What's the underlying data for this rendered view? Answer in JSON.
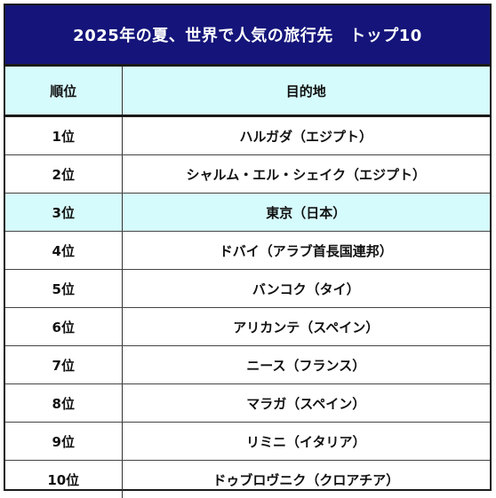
{
  "title": "2025年の夏、世界で人気の旅行先　トップ10",
  "headers": {
    "rank": "順位",
    "destination": "目的地"
  },
  "highlight_color": "#d6fbfd",
  "header_color": "#14147a",
  "rows": [
    {
      "rank": "1位",
      "destination": "ハルガダ（エジプト）",
      "highlight": false
    },
    {
      "rank": "2位",
      "destination": "シャルム・エル・シェイク（エジプト）",
      "highlight": false
    },
    {
      "rank": "3位",
      "destination": "東京（日本）",
      "highlight": true
    },
    {
      "rank": "4位",
      "destination": "ドバイ（アラブ首長国連邦）",
      "highlight": false
    },
    {
      "rank": "5位",
      "destination": "バンコク（タイ）",
      "highlight": false
    },
    {
      "rank": "6位",
      "destination": "アリカンテ（スペイン）",
      "highlight": false
    },
    {
      "rank": "7位",
      "destination": "ニース（フランス）",
      "highlight": false
    },
    {
      "rank": "8位",
      "destination": "マラガ（スペイン）",
      "highlight": false
    },
    {
      "rank": "9位",
      "destination": "リミニ（イタリア）",
      "highlight": false
    },
    {
      "rank": "10位",
      "destination": "ドゥブロヴニク（クロアチア）",
      "highlight": false
    }
  ]
}
